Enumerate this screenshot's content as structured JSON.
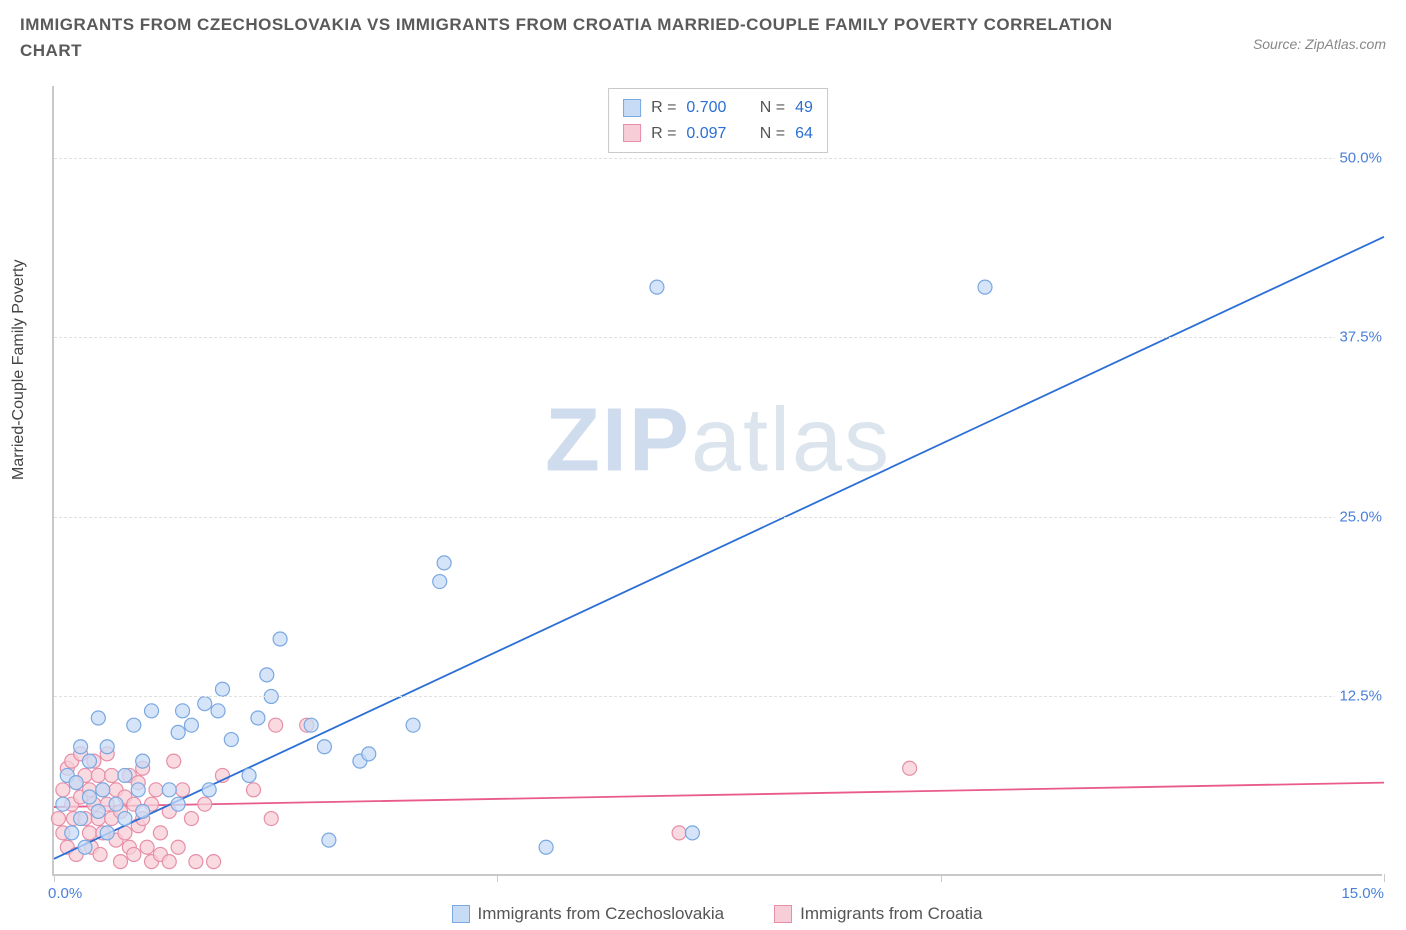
{
  "title": "IMMIGRANTS FROM CZECHOSLOVAKIA VS IMMIGRANTS FROM CROATIA MARRIED-COUPLE FAMILY POVERTY CORRELATION CHART",
  "source_label": "Source: ZipAtlas.com",
  "y_axis_label": "Married-Couple Family Poverty",
  "watermark_bold": "ZIP",
  "watermark_light": "atlas",
  "chart": {
    "type": "scatter",
    "xlim": [
      0,
      15
    ],
    "ylim": [
      0,
      55
    ],
    "x_ticks": [
      0,
      5,
      10,
      15
    ],
    "y_ticks": [
      12.5,
      25.0,
      37.5,
      50.0
    ],
    "x_tick_labels": [
      "0.0%",
      "",
      "",
      "15.0%"
    ],
    "y_tick_labels": [
      "12.5%",
      "25.0%",
      "37.5%",
      "50.0%"
    ],
    "background_color": "#ffffff",
    "grid_color": "#e0e0e0",
    "axis_color": "#c9c9c9",
    "marker_radius": 7,
    "marker_stroke_width": 1.2,
    "line_width": 1.8,
    "series": [
      {
        "name": "Immigrants from Czechoslovakia",
        "color_fill": "#c7dbf5",
        "color_stroke": "#7aa8e0",
        "line_color": "#2b6fd6",
        "R": "0.700",
        "N": "49",
        "trend": {
          "x1": 0,
          "y1": 1.2,
          "x2": 15,
          "y2": 44.5
        },
        "points": [
          [
            0.1,
            5.0
          ],
          [
            0.15,
            7.0
          ],
          [
            0.2,
            3.0
          ],
          [
            0.25,
            6.5
          ],
          [
            0.3,
            4.0
          ],
          [
            0.3,
            9.0
          ],
          [
            0.35,
            2.0
          ],
          [
            0.4,
            5.5
          ],
          [
            0.4,
            8.0
          ],
          [
            0.5,
            4.5
          ],
          [
            0.5,
            11.0
          ],
          [
            0.55,
            6.0
          ],
          [
            0.6,
            3.0
          ],
          [
            0.6,
            9.0
          ],
          [
            0.7,
            5.0
          ],
          [
            0.8,
            7.0
          ],
          [
            0.8,
            4.0
          ],
          [
            0.9,
            10.5
          ],
          [
            0.95,
            6.0
          ],
          [
            1.0,
            4.5
          ],
          [
            1.0,
            8.0
          ],
          [
            1.1,
            11.5
          ],
          [
            1.3,
            6.0
          ],
          [
            1.4,
            10.0
          ],
          [
            1.4,
            5.0
          ],
          [
            1.45,
            11.5
          ],
          [
            1.55,
            10.5
          ],
          [
            1.7,
            12.0
          ],
          [
            1.75,
            6.0
          ],
          [
            1.85,
            11.5
          ],
          [
            1.9,
            13.0
          ],
          [
            2.0,
            9.5
          ],
          [
            2.2,
            7.0
          ],
          [
            2.3,
            11.0
          ],
          [
            2.4,
            14.0
          ],
          [
            2.45,
            12.5
          ],
          [
            2.55,
            16.5
          ],
          [
            2.9,
            10.5
          ],
          [
            3.05,
            9.0
          ],
          [
            3.1,
            2.5
          ],
          [
            3.45,
            8.0
          ],
          [
            3.55,
            8.5
          ],
          [
            4.05,
            10.5
          ],
          [
            4.35,
            20.5
          ],
          [
            4.4,
            21.8
          ],
          [
            5.55,
            2.0
          ],
          [
            6.8,
            41.0
          ],
          [
            7.2,
            3.0
          ],
          [
            10.5,
            41.0
          ]
        ]
      },
      {
        "name": "Immigrants from Croatia",
        "color_fill": "#f7cdd7",
        "color_stroke": "#e78fa8",
        "line_color": "#e85b8c",
        "R": "0.097",
        "N": "64",
        "trend": {
          "x1": 0,
          "y1": 4.8,
          "x2": 15,
          "y2": 6.5
        },
        "points": [
          [
            0.05,
            4.0
          ],
          [
            0.1,
            6.0
          ],
          [
            0.1,
            3.0
          ],
          [
            0.15,
            7.5
          ],
          [
            0.15,
            2.0
          ],
          [
            0.2,
            5.0
          ],
          [
            0.2,
            8.0
          ],
          [
            0.22,
            4.0
          ],
          [
            0.25,
            6.5
          ],
          [
            0.25,
            1.5
          ],
          [
            0.3,
            5.5
          ],
          [
            0.3,
            8.5
          ],
          [
            0.35,
            4.0
          ],
          [
            0.35,
            7.0
          ],
          [
            0.4,
            3.0
          ],
          [
            0.4,
            6.0
          ],
          [
            0.42,
            2.0
          ],
          [
            0.45,
            5.0
          ],
          [
            0.45,
            8.0
          ],
          [
            0.5,
            4.0
          ],
          [
            0.5,
            7.0
          ],
          [
            0.52,
            1.5
          ],
          [
            0.55,
            6.0
          ],
          [
            0.55,
            3.0
          ],
          [
            0.6,
            5.0
          ],
          [
            0.6,
            8.5
          ],
          [
            0.65,
            4.0
          ],
          [
            0.65,
            7.0
          ],
          [
            0.7,
            2.5
          ],
          [
            0.7,
            6.0
          ],
          [
            0.75,
            4.5
          ],
          [
            0.75,
            1.0
          ],
          [
            0.8,
            5.5
          ],
          [
            0.8,
            3.0
          ],
          [
            0.85,
            7.0
          ],
          [
            0.85,
            2.0
          ],
          [
            0.9,
            5.0
          ],
          [
            0.9,
            1.5
          ],
          [
            0.95,
            6.5
          ],
          [
            0.95,
            3.5
          ],
          [
            1.0,
            4.0
          ],
          [
            1.0,
            7.5
          ],
          [
            1.05,
            2.0
          ],
          [
            1.1,
            5.0
          ],
          [
            1.1,
            1.0
          ],
          [
            1.15,
            6.0
          ],
          [
            1.2,
            3.0
          ],
          [
            1.2,
            1.5
          ],
          [
            1.3,
            4.5
          ],
          [
            1.3,
            1.0
          ],
          [
            1.4,
            2.0
          ],
          [
            1.45,
            6.0
          ],
          [
            1.55,
            4.0
          ],
          [
            1.6,
            1.0
          ],
          [
            1.7,
            5.0
          ],
          [
            1.9,
            7.0
          ],
          [
            1.8,
            1.0
          ],
          [
            2.25,
            6.0
          ],
          [
            2.45,
            4.0
          ],
          [
            2.5,
            10.5
          ],
          [
            2.85,
            10.5
          ],
          [
            7.05,
            3.0
          ],
          [
            9.65,
            7.5
          ],
          [
            1.35,
            8.0
          ]
        ]
      }
    ]
  },
  "legend_stats_labels": {
    "R": "R =",
    "N": "N ="
  },
  "bottom_legend": [
    {
      "series_idx": 0
    },
    {
      "series_idx": 1
    }
  ]
}
